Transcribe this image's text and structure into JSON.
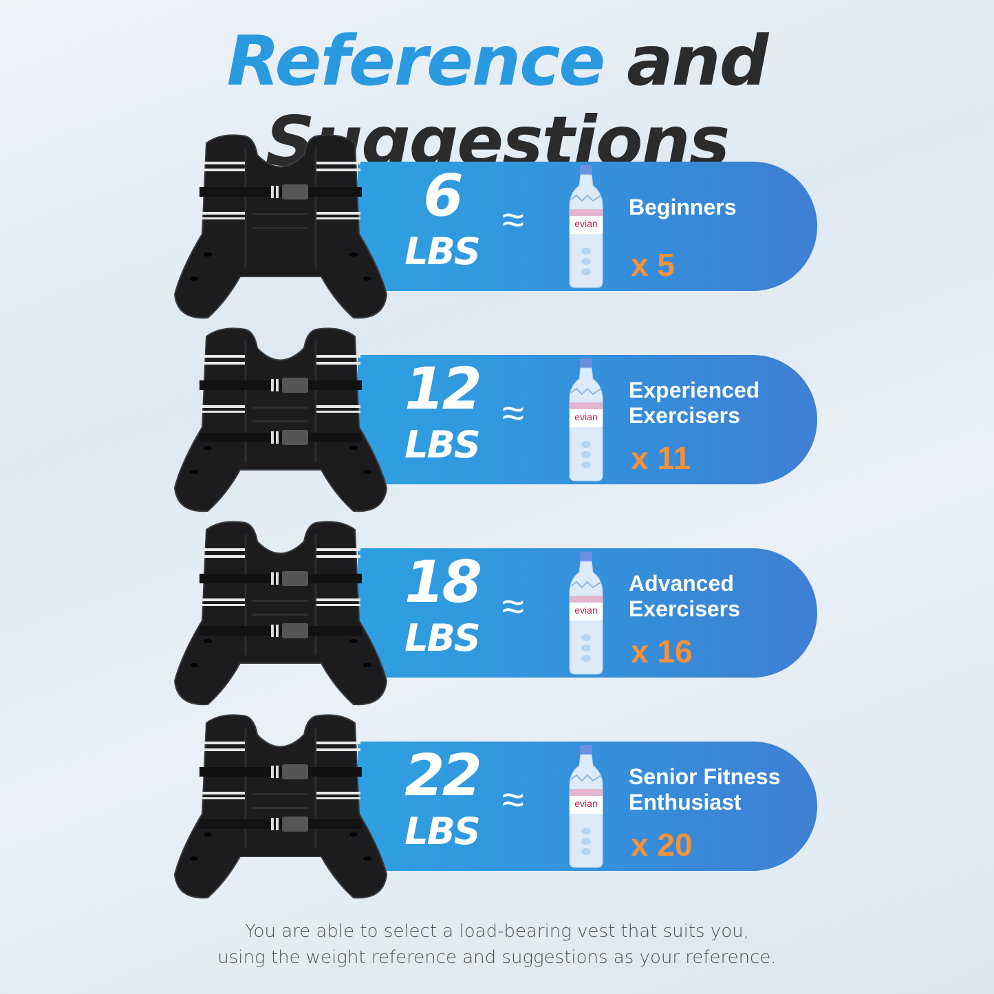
{
  "title": {
    "part1": "Reference",
    "part2": "and Suggestions"
  },
  "colors": {
    "accent_blue": "#2a9ae0",
    "title_dark": "#2b2b2b",
    "pill_start": "#2ea0e1",
    "pill_end": "#3e7fd3",
    "multiplier_orange": "#f6923a"
  },
  "approx_symbol": "≈",
  "unit": "LBS",
  "bottle_brand": "evian",
  "rows": [
    {
      "weight": "6",
      "label_lines": [
        "Beginners"
      ],
      "multiplier": "x 5"
    },
    {
      "weight": "12",
      "label_lines": [
        "Experienced",
        "Exercisers"
      ],
      "multiplier": "x 11"
    },
    {
      "weight": "18",
      "label_lines": [
        "Advanced",
        "Exercisers"
      ],
      "multiplier": "x 16"
    },
    {
      "weight": "22",
      "label_lines": [
        "Senior Fitness",
        "Enthusiast"
      ],
      "multiplier": "x 20"
    }
  ],
  "footer": {
    "line1": "You are able to select a load-bearing vest that suits you,",
    "line2": "using the weight reference and suggestions as your reference."
  }
}
